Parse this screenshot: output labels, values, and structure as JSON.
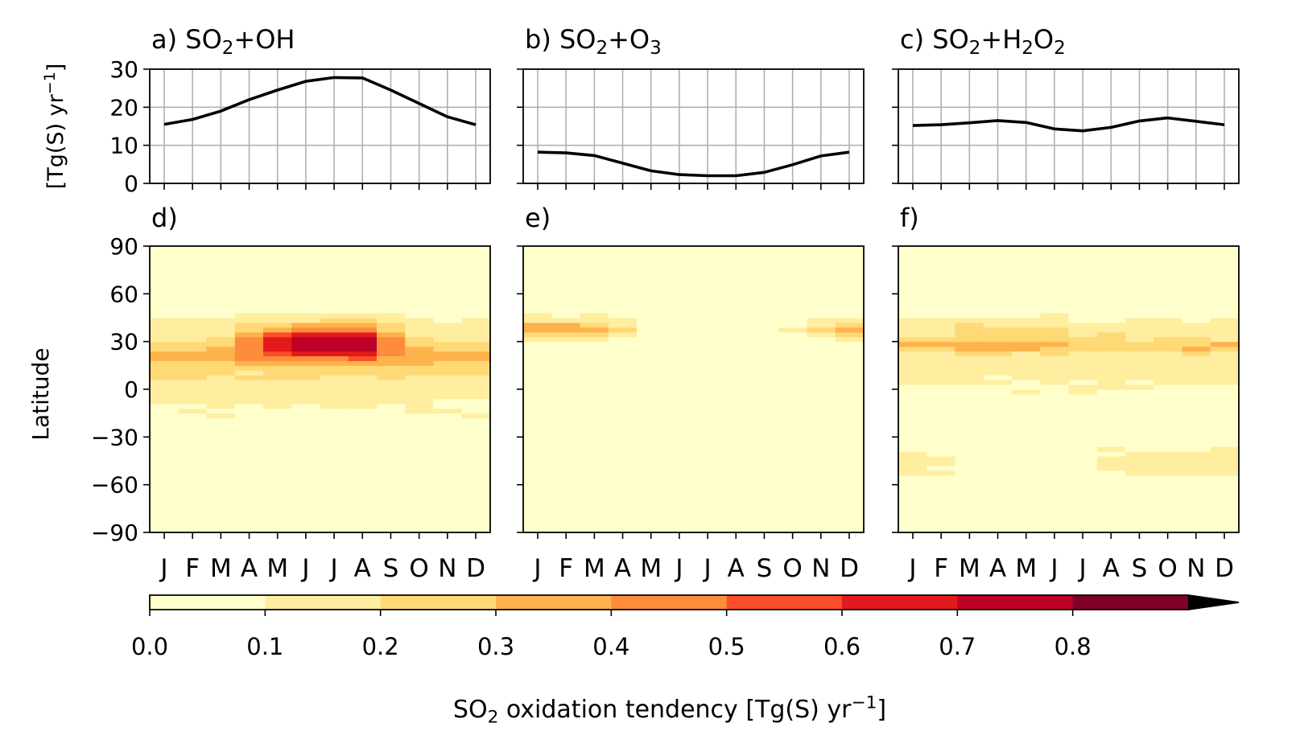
{
  "chart_data": {
    "months": [
      "J",
      "F",
      "M",
      "A",
      "M",
      "J",
      "J",
      "A",
      "S",
      "O",
      "N",
      "D"
    ],
    "line_panels": [
      {
        "label_prefix": "a) ",
        "title_parts": [
          {
            "t": "SO"
          },
          {
            "t": "2",
            "sub": true
          },
          {
            "t": "+OH"
          }
        ],
        "type": "line",
        "ylabel": "[Tg(S) yr",
        "ylabel_sup": "−1",
        "ylabel_close": "]",
        "ylim": [
          0,
          30
        ],
        "yticks": [
          "0",
          "10",
          "20",
          "30"
        ],
        "grid": true,
        "values": [
          15.5,
          16.8,
          19.0,
          22.0,
          24.5,
          26.8,
          27.8,
          27.7,
          24.5,
          21.0,
          17.5,
          15.4
        ]
      },
      {
        "label_prefix": "b) ",
        "title_parts": [
          {
            "t": "SO"
          },
          {
            "t": "2",
            "sub": true
          },
          {
            "t": "+O"
          },
          {
            "t": "3",
            "sub": true
          }
        ],
        "type": "line",
        "ylim": [
          0,
          30
        ],
        "grid": true,
        "values": [
          8.2,
          8.0,
          7.3,
          5.3,
          3.3,
          2.3,
          2.0,
          2.0,
          2.9,
          4.9,
          7.2,
          8.2
        ]
      },
      {
        "label_prefix": "c) ",
        "title_parts": [
          {
            "t": "SO"
          },
          {
            "t": "2",
            "sub": true
          },
          {
            "t": "+H"
          },
          {
            "t": "2",
            "sub": true
          },
          {
            "t": "O"
          },
          {
            "t": "2",
            "sub": true
          }
        ],
        "type": "line",
        "ylim": [
          0,
          30
        ],
        "grid": true,
        "values": [
          15.2,
          15.4,
          15.9,
          16.5,
          16.0,
          14.3,
          13.8,
          14.7,
          16.4,
          17.2,
          16.3,
          15.4
        ]
      }
    ],
    "heatmap_panels": [
      {
        "label": "d)",
        "type": "heatmap",
        "ylabel": "Latitude",
        "ylim": [
          -90,
          90
        ],
        "yticks": [
          "90",
          "60",
          "30",
          "0",
          "−30",
          "−60",
          "−90"
        ],
        "peak_month": 7,
        "month_weights": [
          0.63,
          0.7,
          0.79,
          0.92,
          0.98,
          1.0,
          1.0,
          1.0,
          0.92,
          0.8,
          0.68,
          0.62
        ],
        "lat_band_center": 30,
        "lat_band_halfwidth": 9,
        "notes": "tropical/NH subtropical maximum"
      },
      {
        "label": "e)",
        "type": "heatmap",
        "ylim": [
          -90,
          90
        ],
        "notes": "NH midlatitude winter maximum"
      },
      {
        "label": "f)",
        "type": "heatmap",
        "ylim": [
          -90,
          90
        ],
        "notes": "broad distribution incl. SH midlatitudes"
      }
    ],
    "colorbar": {
      "levels": [
        0.0,
        0.1,
        0.2,
        0.3,
        0.4,
        0.5,
        0.6,
        0.7,
        0.8
      ],
      "tick_labels": [
        "0.0",
        "0.1",
        "0.2",
        "0.3",
        "0.4",
        "0.5",
        "0.6",
        "0.7",
        "0.8"
      ],
      "colors": [
        "#ffffcc",
        "#ffeda0",
        "#fed976",
        "#feb24c",
        "#fd8d3c",
        "#fc4e2a",
        "#e31a1c",
        "#bd0026",
        "#800026"
      ],
      "extend_color": "#000000",
      "label_parts": [
        {
          "t": "SO"
        },
        {
          "t": "2",
          "sub": true
        },
        {
          "t": " oxidation tendency [Tg(S) yr"
        },
        {
          "t": "−1",
          "sup": true
        },
        {
          "t": "]"
        }
      ]
    }
  }
}
